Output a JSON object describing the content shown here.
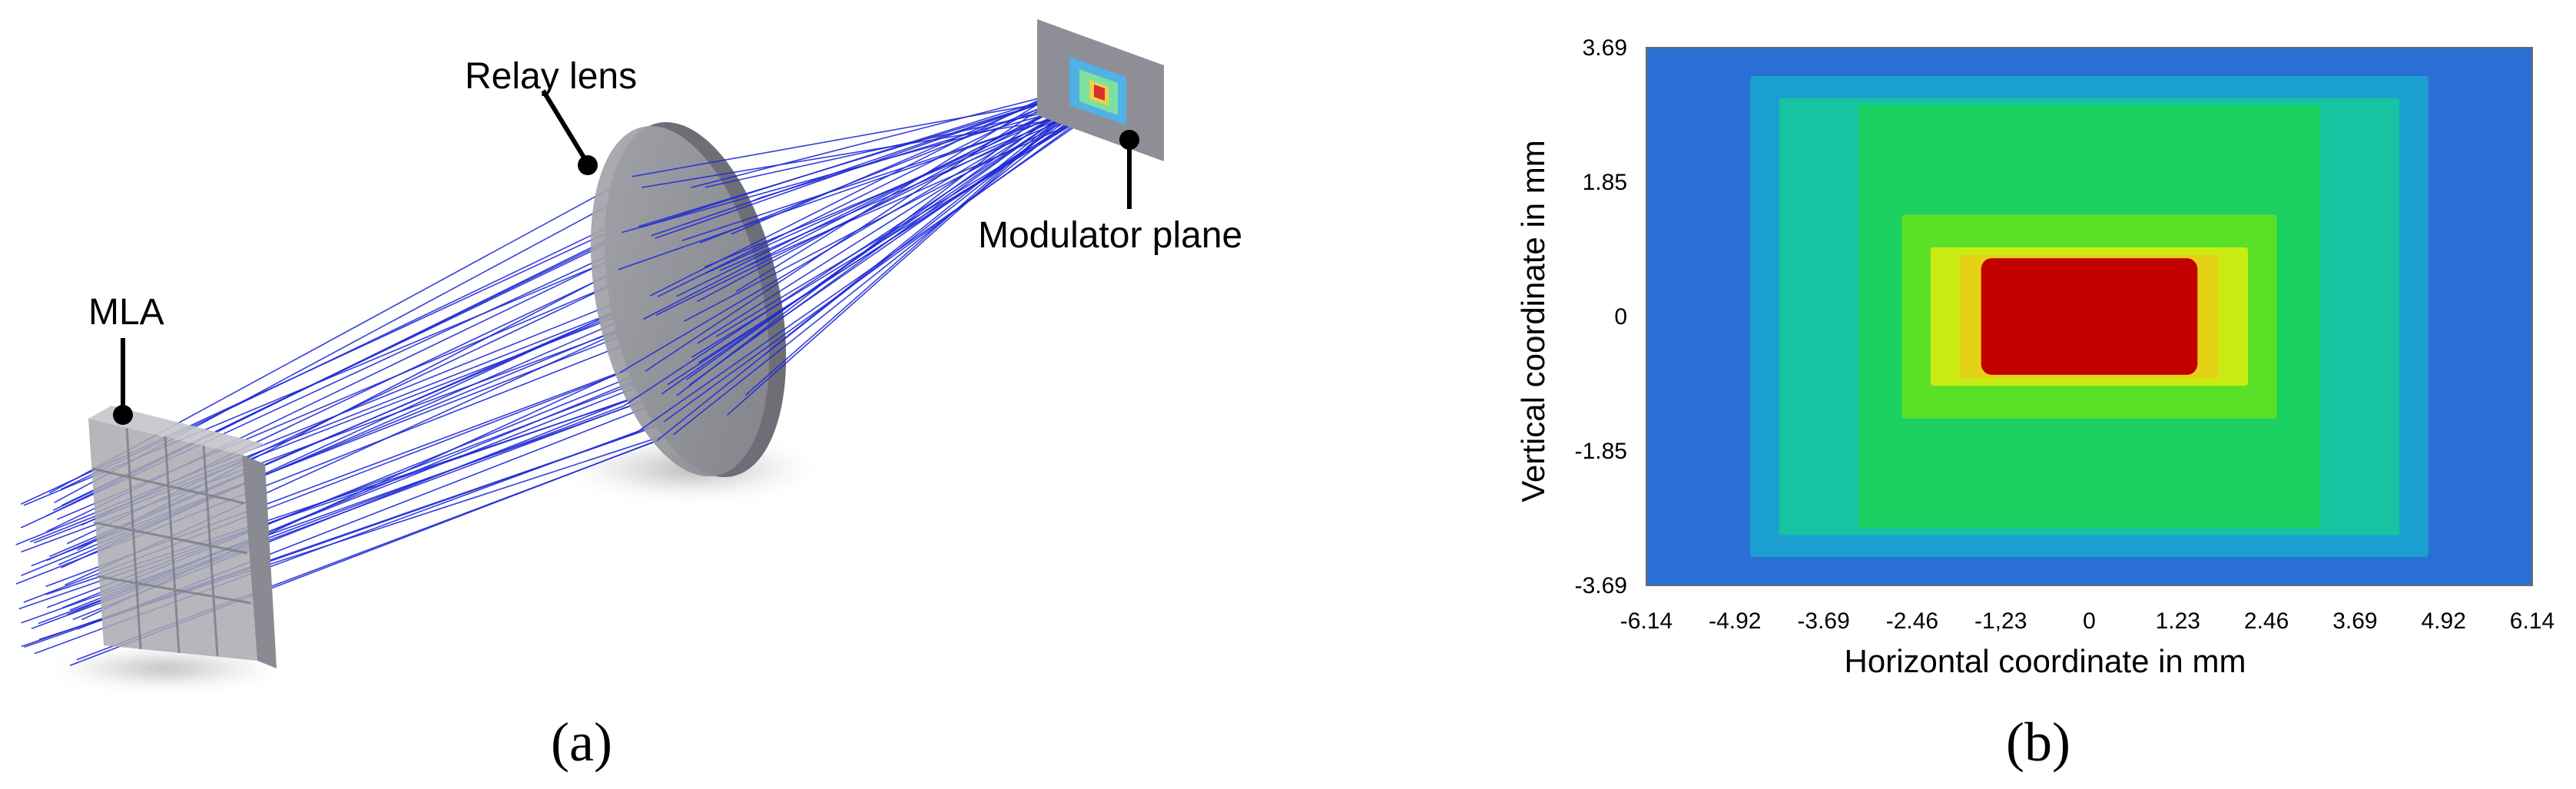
{
  "panel_a": {
    "panel_label": "(a)",
    "callouts": {
      "relay_lens": "Relay lens",
      "modulator_plane": "Modulator plane",
      "mla": "MLA"
    },
    "colors": {
      "ray": "#1f2bd6",
      "lens": "#8e8e96",
      "element": "#a6a6ad"
    }
  },
  "panel_b": {
    "panel_label": "(b)",
    "chart_data": {
      "type": "heatmap",
      "title": "",
      "xlabel": "Horizontal coordinate in mm",
      "ylabel": "Vertical coordinate in mm",
      "x_ticks": [
        "-6.14",
        "-4.92",
        "-3.69",
        "-2.46",
        "-1,23",
        "0",
        "1.23",
        "2.46",
        "3.69",
        "4.92",
        "6.14"
      ],
      "y_ticks": [
        "3.69",
        "1.85",
        "0",
        "-1.85",
        "-3.69"
      ],
      "xlim": [
        -6.14,
        6.14
      ],
      "ylim": [
        -3.69,
        3.69
      ],
      "colormap": [
        "#2d6fd2",
        "#1aa6c8",
        "#16c878",
        "#22dd3a",
        "#a8ee16",
        "#e6d81a",
        "#c40000"
      ],
      "regions": [
        {
          "x": [
            -6.14,
            6.14
          ],
          "y": [
            -3.69,
            3.69
          ],
          "color": "#2a70d4"
        },
        {
          "x": [
            -4.7,
            4.7
          ],
          "y": [
            -3.3,
            3.3
          ],
          "color": "#1a9fd0"
        },
        {
          "x": [
            -4.3,
            4.3
          ],
          "y": [
            -3.0,
            3.0
          ],
          "color": "#17c3a0"
        },
        {
          "x": [
            -3.2,
            3.2
          ],
          "y": [
            -2.9,
            2.9
          ],
          "color": "#19d060"
        },
        {
          "x": [
            -2.6,
            2.6
          ],
          "y": [
            -1.4,
            1.4
          ],
          "color": "#5be028"
        },
        {
          "x": [
            -2.2,
            2.2
          ],
          "y": [
            -0.95,
            0.95
          ],
          "color": "#c8ec12"
        },
        {
          "x": [
            -1.8,
            1.8
          ],
          "y": [
            -0.85,
            0.85
          ],
          "color": "#e4d216"
        },
        {
          "x": [
            -1.5,
            1.5
          ],
          "y": [
            -0.8,
            0.8
          ],
          "color": "#c20000"
        }
      ]
    }
  }
}
